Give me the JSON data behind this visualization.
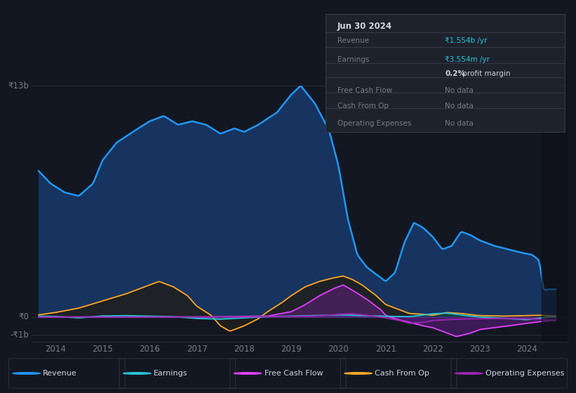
{
  "bg_color": "#131722",
  "chart_bg": "#1a1f2e",
  "grid_color": "#2a2e3a",
  "text_color": "#787b86",
  "title_color": "#d1d4dc",
  "y_label_top": "₹13b",
  "y_label_zero": "₹0",
  "y_label_neg": "-₹1b",
  "x_labels": [
    "2014",
    "2015",
    "2016",
    "2017",
    "2018",
    "2019",
    "2020",
    "2021",
    "2022",
    "2023",
    "2024"
  ],
  "legend_items": [
    {
      "label": "Revenue",
      "color": "#2196f3"
    },
    {
      "label": "Earnings",
      "color": "#26c6da"
    },
    {
      "label": "Free Cash Flow",
      "color": "#e040fb"
    },
    {
      "label": "Cash From Op",
      "color": "#ffa726"
    },
    {
      "label": "Operating Expenses",
      "color": "#9c27b0"
    }
  ],
  "tooltip_bg": "#1e222d",
  "tooltip_border": "#363a45",
  "tooltip_title": "Jun 30 2024",
  "tooltip_revenue_label": "Revenue",
  "tooltip_revenue_val": "₹1.554b /yr",
  "tooltip_earnings_label": "Earnings",
  "tooltip_earnings_val": "₹3.554m /yr",
  "tooltip_margin": "0.2%",
  "tooltip_margin_text": " profit margin",
  "tooltip_nodata_label1": "Free Cash Flow",
  "tooltip_nodata_label2": "Cash From Op",
  "tooltip_nodata_label3": "Operating Expenses",
  "tooltip_nodata": "No data",
  "revenue_color": "#26c6da",
  "earnings_color": "#26c6da",
  "figsize": [
    8.21,
    5.6
  ],
  "dpi": 100,
  "ylim": [
    -1400000000.0,
    14500000000.0
  ],
  "xlim": [
    2013.5,
    2024.85
  ],
  "revenue_fill_color": "#1a3a6b",
  "cashop_fill_color": "#1a1a1a"
}
